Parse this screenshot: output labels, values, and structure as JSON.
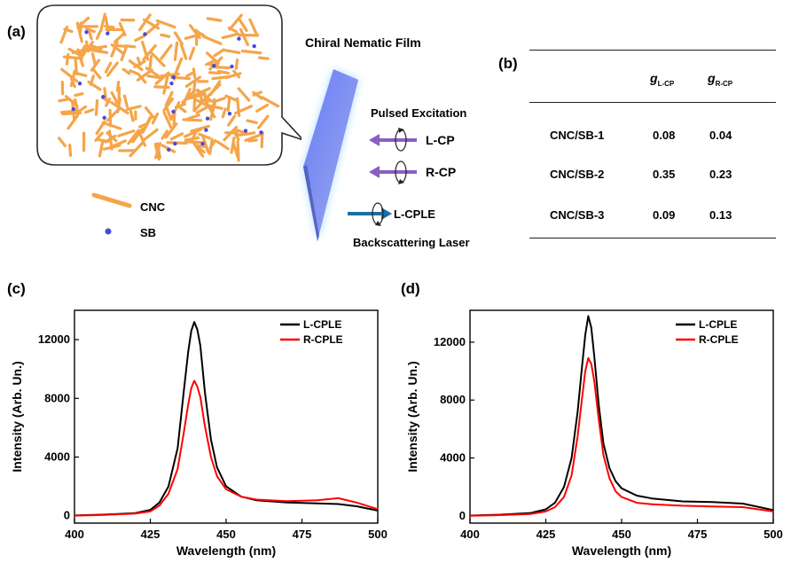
{
  "figure": {
    "panel_a": {
      "label": "(a)",
      "film_title": "Chiral Nematic Film",
      "legend": [
        {
          "name": "CNC"
        },
        {
          "name": "SB"
        }
      ],
      "arrows": {
        "pulsed_excitation": "Pulsed Excitation",
        "lcp": "L-CP",
        "rcp": "R-CP",
        "lcple": "L-CPLE",
        "backscattering": "Backscattering Laser"
      },
      "colors": {
        "rod": "#f5a54a",
        "dot": "#4a4ad8",
        "film": "#7b8ef0",
        "incoming_arrow": "#8a5fc4",
        "outgoing_arrow": "#1a6fa0"
      }
    },
    "panel_b": {
      "label": "(b)",
      "columns": [
        {
          "main": "g",
          "sub": "L-CP"
        },
        {
          "main": "g",
          "sub": "R-CP"
        }
      ],
      "rows": [
        {
          "name": "CNC/SB-1",
          "g_lcp": "0.08",
          "g_rcp": "0.04"
        },
        {
          "name": "CNC/SB-2",
          "g_lcp": "0.35",
          "g_rcp": "0.23"
        },
        {
          "name": "CNC/SB-3",
          "g_lcp": "0.09",
          "g_rcp": "0.13"
        }
      ]
    }
  },
  "chart_data": [
    {
      "panel": "(c)",
      "type": "line",
      "xlabel": "Wavelength (nm)",
      "ylabel": "Intensity (Arb. Un.)",
      "xlim": [
        400,
        500
      ],
      "ylim": [
        -500,
        14000
      ],
      "xticks": [
        400,
        425,
        450,
        475,
        500
      ],
      "yticks": [
        0,
        4000,
        8000,
        12000
      ],
      "legend": "top-right",
      "series": [
        {
          "name": "L-CPLE",
          "color": "#000000",
          "x": [
            400,
            410,
            420,
            425,
            428,
            431,
            434,
            436,
            437.5,
            438.5,
            439.5,
            440.5,
            441.5,
            443,
            445,
            447,
            450,
            455,
            460,
            470,
            480,
            487,
            493,
            500
          ],
          "y": [
            20,
            80,
            180,
            400,
            900,
            2000,
            4600,
            8400,
            11200,
            12600,
            13200,
            12700,
            11600,
            8400,
            5200,
            3300,
            2000,
            1300,
            1050,
            900,
            850,
            800,
            650,
            350
          ]
        },
        {
          "name": "R-CPLE",
          "color": "#ff0000",
          "x": [
            400,
            410,
            420,
            425,
            428,
            431,
            434,
            436,
            437.5,
            438.5,
            439.5,
            440.5,
            441.5,
            443,
            445,
            447,
            450,
            455,
            460,
            470,
            480,
            487,
            493,
            500
          ],
          "y": [
            10,
            60,
            150,
            300,
            700,
            1500,
            3200,
            5600,
            7600,
            8700,
            9200,
            8800,
            8100,
            6100,
            4000,
            2700,
            1800,
            1300,
            1100,
            1000,
            1050,
            1200,
            900,
            450
          ]
        }
      ]
    },
    {
      "panel": "(d)",
      "type": "line",
      "xlabel": "Wavelength (nm)",
      "ylabel": "Intensity (Arb. Un.)",
      "xlim": [
        400,
        500
      ],
      "ylim": [
        -500,
        14200
      ],
      "xticks": [
        400,
        425,
        450,
        475,
        500
      ],
      "yticks": [
        0,
        4000,
        8000,
        12000
      ],
      "legend": "top-right",
      "series": [
        {
          "name": "L-CPLE",
          "color": "#000000",
          "x": [
            400,
            410,
            420,
            425,
            428,
            431,
            433.5,
            435.5,
            437,
            438,
            439,
            440,
            441,
            442.5,
            444,
            446,
            448,
            450,
            455,
            460,
            470,
            480,
            490,
            500
          ],
          "y": [
            20,
            80,
            200,
            450,
            900,
            2000,
            4000,
            7200,
            10400,
            12500,
            13800,
            13000,
            11000,
            7600,
            5000,
            3300,
            2400,
            1900,
            1400,
            1200,
            1000,
            950,
            850,
            400
          ]
        },
        {
          "name": "R-CPLE",
          "color": "#ff0000",
          "x": [
            400,
            410,
            420,
            425,
            428,
            431,
            433.5,
            435.5,
            437,
            438,
            439,
            440,
            441,
            442.5,
            444,
            446,
            448,
            450,
            455,
            460,
            470,
            480,
            490,
            500
          ],
          "y": [
            10,
            50,
            130,
            300,
            600,
            1300,
            2800,
            5500,
            8200,
            10000,
            10900,
            10500,
            9300,
            6600,
            4200,
            2600,
            1700,
            1300,
            900,
            800,
            700,
            650,
            600,
            300
          ]
        }
      ]
    }
  ]
}
